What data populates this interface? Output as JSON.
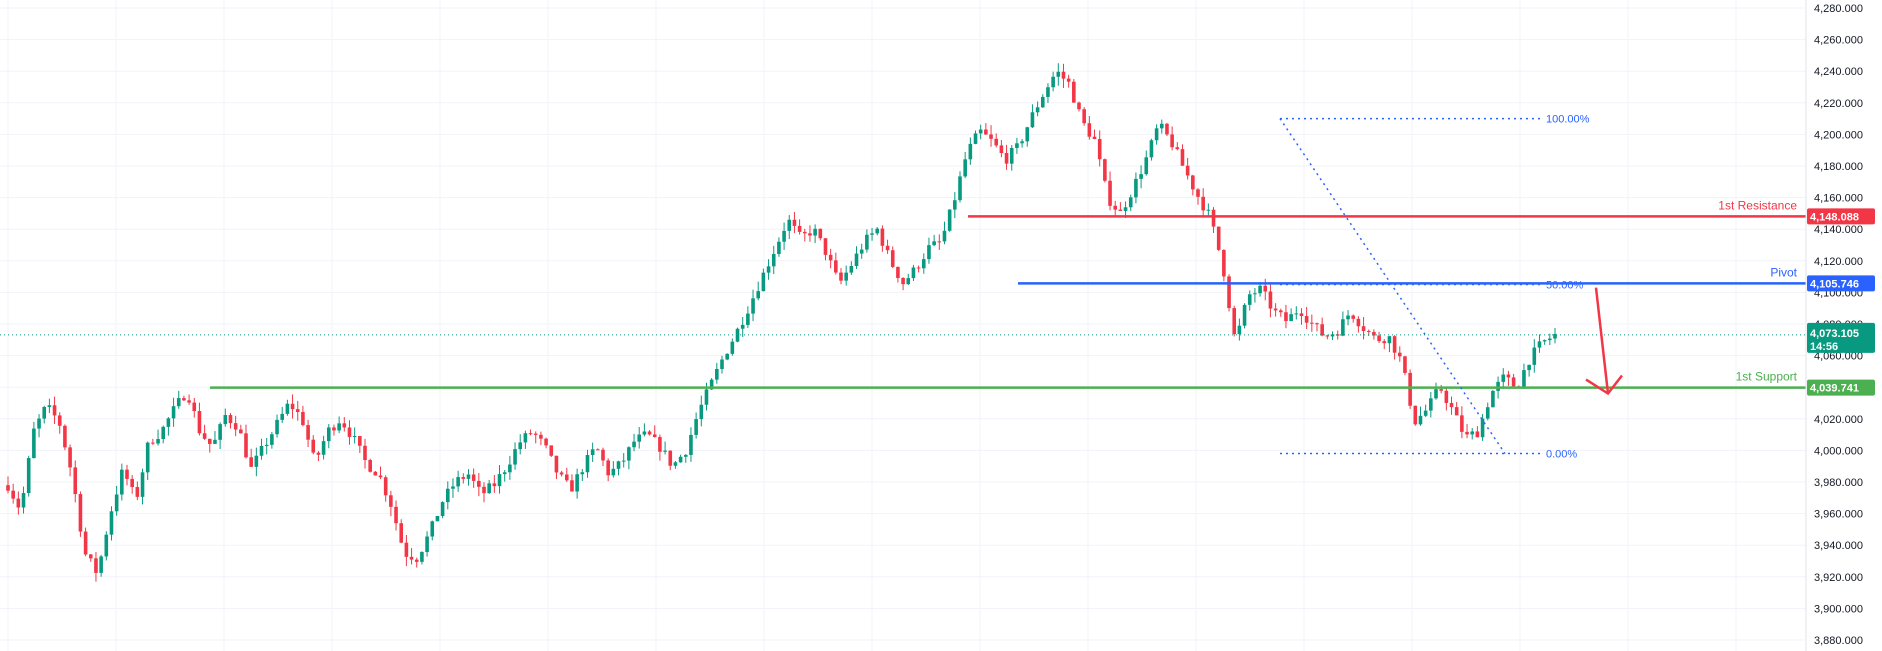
{
  "colors": {
    "bull": "#089981",
    "bear": "#f23645",
    "grid": "#f0f3fa",
    "resistance": "#f23645",
    "pivot": "#2962ff",
    "support": "#4caf50",
    "fib": "#2962ff",
    "current": "#089981",
    "arrow": "#f23645"
  },
  "chart_data": {
    "type": "candlestick",
    "ylim": [
      3880,
      4280
    ],
    "y_ticks": [
      "4,280.000",
      "4,260.000",
      "4,240.000",
      "4,220.000",
      "4,200.000",
      "4,180.000",
      "4,160.000",
      "4,140.000",
      "4,120.000",
      "4,100.000",
      "4,080.000",
      "4,060.000",
      "4,040.000",
      "4,020.000",
      "4,000.000",
      "3,980.000",
      "3,960.000",
      "3,940.000",
      "3,920.000",
      "3,900.000",
      "3,880.000"
    ],
    "close_path": [
      3978,
      3962,
      4012,
      4028,
      4018,
      3985,
      3935,
      3922,
      3960,
      3988,
      3968,
      4005,
      4012,
      4026,
      4038,
      4012,
      4002,
      4022,
      4015,
      3988,
      4002,
      4016,
      4030,
      4020,
      3992,
      4012,
      4020,
      4008,
      3992,
      3985,
      3965,
      3935,
      3932,
      3948,
      3968,
      3980,
      3985,
      3972,
      3978,
      3990,
      4005,
      4012,
      4002,
      3985,
      3975,
      3990,
      4002,
      3985,
      3992,
      4006,
      4010,
      4002,
      3990,
      4000,
      4024,
      4042,
      4060,
      4075,
      4092,
      4110,
      4128,
      4146,
      4134,
      4140,
      4125,
      4105,
      4118,
      4132,
      4140,
      4120,
      4106,
      4115,
      4128,
      4132,
      4158,
      4188,
      4202,
      4195,
      4184,
      4192,
      4210,
      4226,
      4240,
      4232,
      4208,
      4196,
      4160,
      4150,
      4166,
      4184,
      4206,
      4195,
      4178,
      4162,
      4148,
      4118,
      4068,
      4098,
      4102,
      4088,
      4082,
      4090,
      4080,
      4072,
      4076,
      4088,
      4078,
      4070,
      4072,
      4056,
      4018,
      4026,
      4040,
      4025,
      4008,
      4012,
      4036,
      4046,
      4040,
      4058,
      4068,
      4073
    ],
    "current_price": "4,073.105",
    "countdown": "14:56",
    "levels": [
      {
        "name": "1st Resistance",
        "value": 4148.088,
        "label": "4,148.088"
      },
      {
        "name": "Pivot",
        "value": 4105.746,
        "label": "4,105.746"
      },
      {
        "name": "1st Support",
        "value": 4039.741,
        "label": "4,039.741"
      }
    ],
    "fib": [
      {
        "label": "100.00%",
        "value": 4210
      },
      {
        "label": "50.00%",
        "value": 4105
      },
      {
        "label": "0.00%",
        "value": 3998
      }
    ]
  }
}
